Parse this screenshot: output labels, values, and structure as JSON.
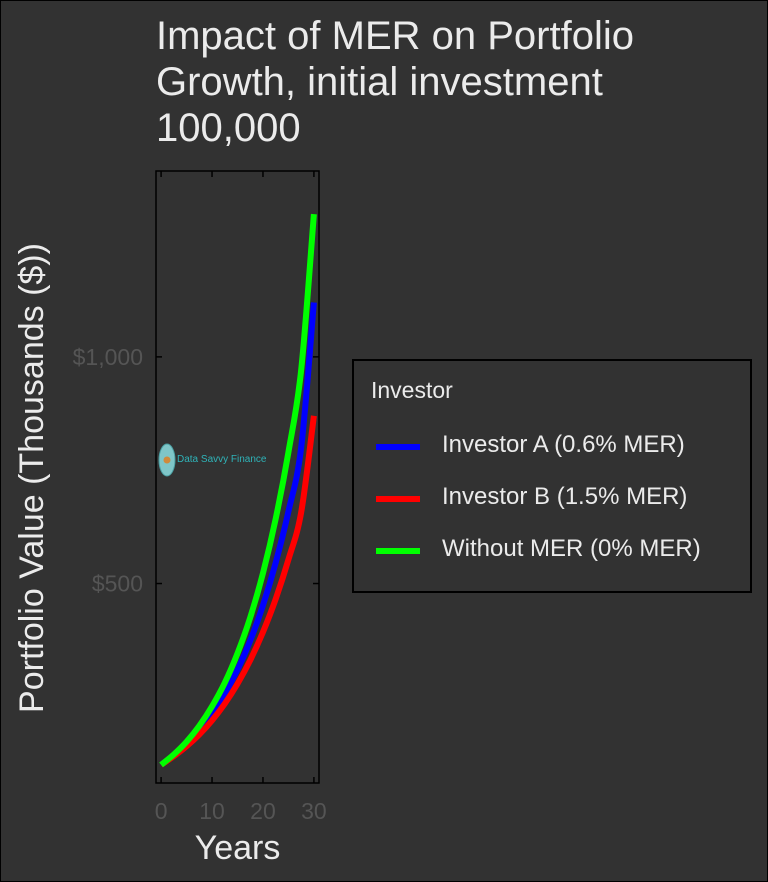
{
  "chart_data": {
    "type": "line",
    "title": "Impact of MER on Portfolio\nGrowth, initial investment\n100,000",
    "xlabel": "Years",
    "ylabel": "Portfolio Value (Thousands ($))",
    "xlim": [
      -1,
      31
    ],
    "ylim": [
      60,
      1410
    ],
    "x_ticks": [
      0,
      10,
      20,
      30
    ],
    "x_tick_labels": [
      "0",
      "10",
      "20",
      "30"
    ],
    "y_ticks": [
      500,
      1000
    ],
    "y_tick_labels": [
      "$500",
      "$1,000"
    ],
    "grid": false,
    "legend_title": "Investor",
    "legend_position": "right",
    "watermark": "Data Savvy Finance",
    "x": [
      0,
      2.5,
      5,
      7.5,
      10,
      12.5,
      15,
      17.5,
      20,
      22.5,
      25,
      27.5,
      30
    ],
    "series": [
      {
        "name": "Investor A (0.6% MER)",
        "color": "#0000ff",
        "values": [
          100,
          121,
          146,
          176,
          213,
          257,
          310,
          374,
          452,
          546,
          659,
          800,
          1120
        ]
      },
      {
        "name": "Investor B (1.5% MER)",
        "color": "#ff0000",
        "values": [
          100,
          119,
          141,
          167,
          198,
          235,
          279,
          331,
          393,
          466,
          553,
          657,
          870
        ]
      },
      {
        "name": "Without MER (0% MER)",
        "color": "#00ff00",
        "values": [
          100,
          123,
          151,
          186,
          229,
          281,
          346,
          425,
          523,
          643,
          790,
          971,
          1315
        ]
      }
    ]
  }
}
